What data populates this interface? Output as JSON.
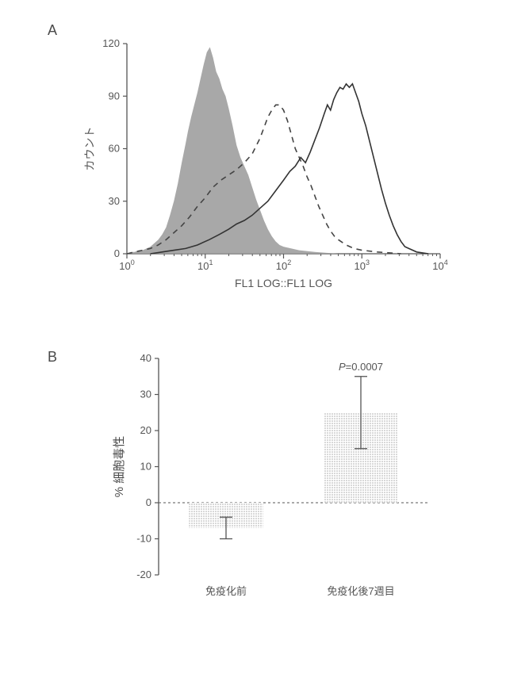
{
  "panelA": {
    "label": "A",
    "type": "histogram-overlay",
    "xlabel": "FL1 LOG::FL1 LOG",
    "ylabel": "カウント",
    "label_fontsize": 14,
    "xlim": [
      0,
      4
    ],
    "ylim": [
      0,
      120
    ],
    "xtick_exponents": [
      0,
      1,
      2,
      3,
      4
    ],
    "yticks": [
      0,
      30,
      60,
      90,
      120
    ],
    "axis_color": "#555555",
    "background": "#ffffff",
    "series": {
      "filled": {
        "fill": "#9c9c9c",
        "opacity": 0.88,
        "stroke": "none",
        "points": [
          [
            0.0,
            0
          ],
          [
            0.05,
            1
          ],
          [
            0.1,
            1
          ],
          [
            0.15,
            2
          ],
          [
            0.2,
            2
          ],
          [
            0.25,
            3
          ],
          [
            0.3,
            4
          ],
          [
            0.35,
            6
          ],
          [
            0.4,
            8
          ],
          [
            0.45,
            11
          ],
          [
            0.5,
            15
          ],
          [
            0.55,
            22
          ],
          [
            0.6,
            30
          ],
          [
            0.65,
            40
          ],
          [
            0.7,
            52
          ],
          [
            0.75,
            63
          ],
          [
            0.78,
            70
          ],
          [
            0.82,
            78
          ],
          [
            0.86,
            85
          ],
          [
            0.9,
            92
          ],
          [
            0.94,
            100
          ],
          [
            0.98,
            108
          ],
          [
            1.02,
            115
          ],
          [
            1.06,
            118
          ],
          [
            1.1,
            112
          ],
          [
            1.14,
            104
          ],
          [
            1.18,
            100
          ],
          [
            1.22,
            94
          ],
          [
            1.26,
            90
          ],
          [
            1.3,
            83
          ],
          [
            1.35,
            73
          ],
          [
            1.4,
            62
          ],
          [
            1.45,
            55
          ],
          [
            1.5,
            50
          ],
          [
            1.55,
            45
          ],
          [
            1.6,
            38
          ],
          [
            1.65,
            31
          ],
          [
            1.7,
            25
          ],
          [
            1.75,
            19
          ],
          [
            1.8,
            14
          ],
          [
            1.85,
            10
          ],
          [
            1.9,
            7
          ],
          [
            1.95,
            5
          ],
          [
            2.0,
            4
          ],
          [
            2.1,
            3
          ],
          [
            2.2,
            2
          ],
          [
            2.4,
            1
          ],
          [
            2.7,
            0
          ]
        ]
      },
      "dashed": {
        "stroke": "#444444",
        "stroke_width": 1.6,
        "dash": "7,6",
        "points": [
          [
            0.0,
            0
          ],
          [
            0.1,
            1
          ],
          [
            0.2,
            2
          ],
          [
            0.3,
            3
          ],
          [
            0.4,
            5
          ],
          [
            0.5,
            8
          ],
          [
            0.6,
            12
          ],
          [
            0.7,
            16
          ],
          [
            0.8,
            21
          ],
          [
            0.9,
            27
          ],
          [
            1.0,
            32
          ],
          [
            1.1,
            38
          ],
          [
            1.2,
            42
          ],
          [
            1.3,
            45
          ],
          [
            1.4,
            48
          ],
          [
            1.5,
            52
          ],
          [
            1.6,
            57
          ],
          [
            1.7,
            66
          ],
          [
            1.75,
            72
          ],
          [
            1.8,
            78
          ],
          [
            1.85,
            82
          ],
          [
            1.9,
            85
          ],
          [
            1.95,
            85
          ],
          [
            2.0,
            82
          ],
          [
            2.05,
            76
          ],
          [
            2.1,
            68
          ],
          [
            2.15,
            60
          ],
          [
            2.2,
            55
          ],
          [
            2.25,
            50
          ],
          [
            2.3,
            44
          ],
          [
            2.35,
            39
          ],
          [
            2.4,
            33
          ],
          [
            2.45,
            27
          ],
          [
            2.5,
            22
          ],
          [
            2.55,
            17
          ],
          [
            2.6,
            13
          ],
          [
            2.65,
            10
          ],
          [
            2.7,
            8
          ],
          [
            2.8,
            5
          ],
          [
            2.9,
            3
          ],
          [
            3.0,
            2
          ],
          [
            3.2,
            1
          ],
          [
            3.5,
            0
          ]
        ]
      },
      "solid": {
        "stroke": "#333333",
        "stroke_width": 1.6,
        "points": [
          [
            0.3,
            0
          ],
          [
            0.45,
            1
          ],
          [
            0.6,
            2
          ],
          [
            0.75,
            3
          ],
          [
            0.9,
            5
          ],
          [
            1.05,
            8
          ],
          [
            1.18,
            11
          ],
          [
            1.3,
            14
          ],
          [
            1.4,
            17
          ],
          [
            1.5,
            19
          ],
          [
            1.6,
            22
          ],
          [
            1.7,
            26
          ],
          [
            1.8,
            30
          ],
          [
            1.9,
            36
          ],
          [
            2.0,
            42
          ],
          [
            2.08,
            47
          ],
          [
            2.15,
            50
          ],
          [
            2.22,
            55
          ],
          [
            2.28,
            52
          ],
          [
            2.34,
            58
          ],
          [
            2.4,
            65
          ],
          [
            2.46,
            72
          ],
          [
            2.52,
            80
          ],
          [
            2.56,
            85
          ],
          [
            2.6,
            82
          ],
          [
            2.64,
            88
          ],
          [
            2.68,
            92
          ],
          [
            2.72,
            95
          ],
          [
            2.76,
            94
          ],
          [
            2.8,
            97
          ],
          [
            2.84,
            95
          ],
          [
            2.88,
            97
          ],
          [
            2.92,
            92
          ],
          [
            2.96,
            87
          ],
          [
            3.0,
            80
          ],
          [
            3.05,
            73
          ],
          [
            3.1,
            64
          ],
          [
            3.15,
            55
          ],
          [
            3.2,
            46
          ],
          [
            3.25,
            37
          ],
          [
            3.3,
            29
          ],
          [
            3.35,
            22
          ],
          [
            3.4,
            16
          ],
          [
            3.45,
            11
          ],
          [
            3.5,
            7
          ],
          [
            3.55,
            4
          ],
          [
            3.6,
            3
          ],
          [
            3.7,
            1
          ],
          [
            3.85,
            0
          ]
        ]
      }
    }
  },
  "panelB": {
    "label": "B",
    "type": "bar",
    "ylabel": "% 細胞毒性",
    "label_fontsize": 15,
    "ylim": [
      -20,
      40
    ],
    "yticks": [
      -20,
      -10,
      0,
      10,
      20,
      30,
      40
    ],
    "categories": [
      "免疫化前",
      "免疫化後7週目"
    ],
    "values": [
      -7,
      25
    ],
    "error_bars": [
      3,
      10
    ],
    "bar_fill": "#9c9c9c",
    "bar_fill_opacity": 0.85,
    "bar_width": 0.55,
    "axis_color": "#555555",
    "baseline_dash": "3,3",
    "pvalue_text": "P=0.0007",
    "background": "#ffffff"
  }
}
